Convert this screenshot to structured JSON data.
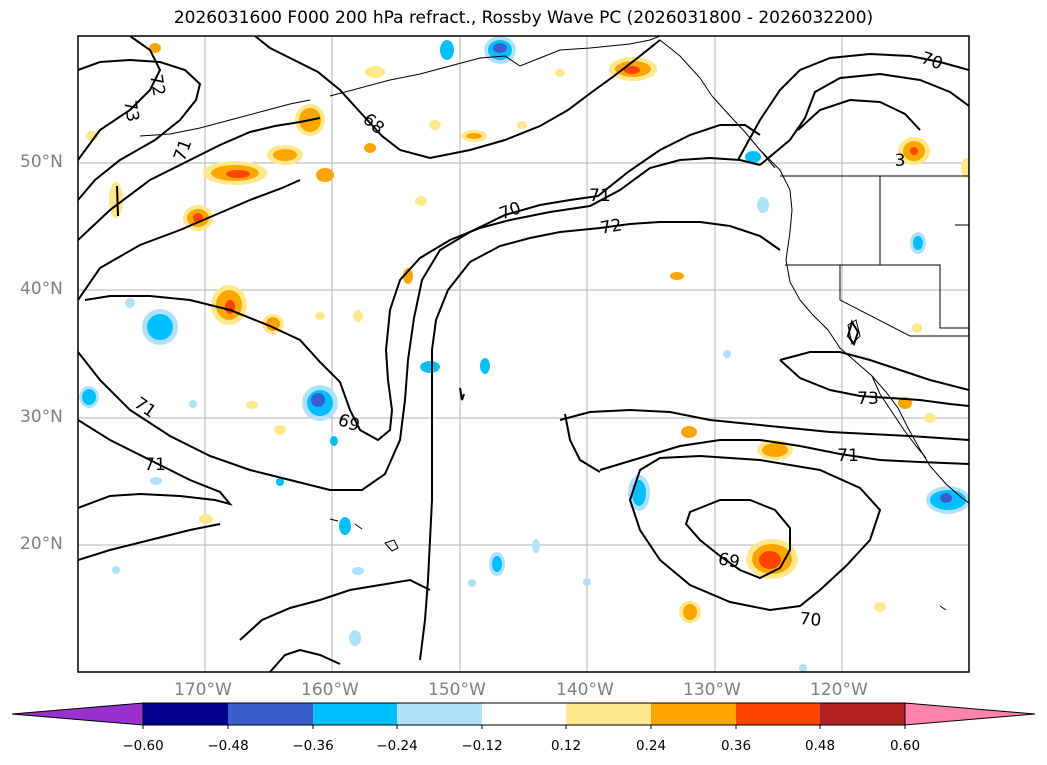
{
  "title": "2026031600 F000 200 hPa refract., Rossby Wave PC (2026031800 - 2026032200)",
  "lat_labels": [
    "50°N",
    "40°N",
    "30°N",
    "20°N"
  ],
  "lon_labels": [
    "170°W",
    "160°W",
    "150°W",
    "140°W",
    "130°W",
    "120°W"
  ],
  "contour_labels": [
    "73",
    "72",
    "71",
    "68",
    "71",
    "70",
    "72",
    "70",
    "3",
    "71",
    "71",
    "69",
    "73",
    "71",
    "69",
    "70"
  ],
  "colorbar": {
    "ticks": [
      "−0.60",
      "−0.48",
      "−0.36",
      "−0.24",
      "−0.12",
      "0.12",
      "0.24",
      "0.36",
      "0.48",
      "0.60"
    ],
    "colors": [
      "#9932cc",
      "#00008b",
      "#3a5fcd",
      "#00bfff",
      "#afe1fa",
      "#ffffff",
      "#ffe88c",
      "#ffa500",
      "#ff4500",
      "#b22222",
      "#ff82ab"
    ]
  }
}
